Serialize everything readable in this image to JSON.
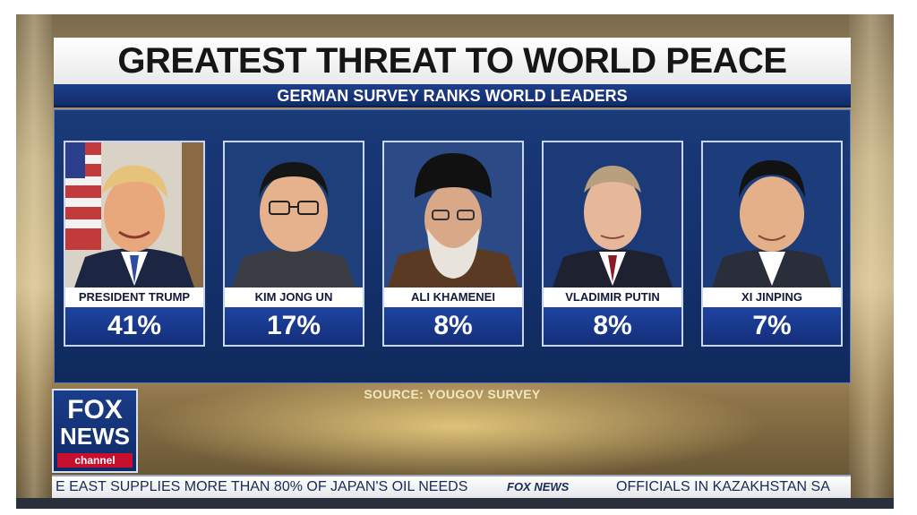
{
  "title": "GREATEST THREAT TO WORLD PEACE",
  "subtitle": "GERMAN SURVEY RANKS WORLD LEADERS",
  "leaders": [
    {
      "name": "PRESIDENT TRUMP",
      "percent": "41%"
    },
    {
      "name": "KIM JONG UN",
      "percent": "17%"
    },
    {
      "name": "ALI KHAMENEI",
      "percent": "8%"
    },
    {
      "name": "VLADIMIR PUTIN",
      "percent": "8%"
    },
    {
      "name": "XI JINPING",
      "percent": "7%"
    }
  ],
  "source": "SOURCE: YOUGOV SURVEY",
  "logo": {
    "fox": "FOX",
    "news": "NEWS",
    "channel": "channel"
  },
  "ticker": {
    "left": "E EAST SUPPLIES MORE THAN 80% OF JAPAN'S OIL NEEDS",
    "brand": "FOX NEWS",
    "right": "OFFICIALS IN KAZAKHSTAN SA"
  },
  "colors": {
    "panel": "#13306a",
    "accent_blue": "#1e43a0",
    "channel_red": "#c8102e"
  }
}
